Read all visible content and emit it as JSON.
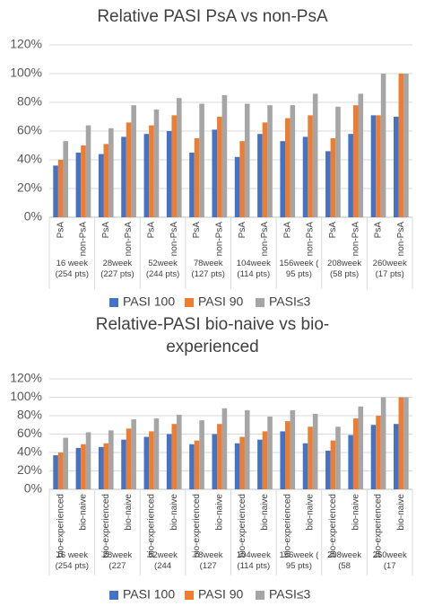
{
  "chart_data": [
    {
      "type": "bar",
      "title": "Relative PASI PsA vs non-PsA",
      "categories": [
        "PsA",
        "non-PsA",
        "PsA",
        "non-PsA",
        "PsA",
        "non-PsA",
        "PsA",
        "non-PsA",
        "PsA",
        "non-PsA",
        "PsA",
        "non-PsA",
        "PsA",
        "non-PsA",
        "PsA",
        "non-PsA"
      ],
      "groups": [
        "16 week\n(254 pts)",
        "28week\n(227 pts)",
        "52week\n(244 pts)",
        "78week\n(127 pts)",
        "104week\n(114 pts)",
        "156week (\n95 pts)",
        "208week\n(58 pts)",
        "260week\n(17 pts)"
      ],
      "series": [
        {
          "name": "PASI 100",
          "color": "#4472c4",
          "values": [
            36,
            45,
            44,
            56,
            58,
            60,
            45,
            61,
            42,
            58,
            53,
            56,
            46,
            58,
            71,
            70
          ]
        },
        {
          "name": "PASI 90",
          "color": "#ed7d31",
          "values": [
            40,
            50,
            51,
            66,
            64,
            71,
            55,
            70,
            53,
            66,
            69,
            71,
            55,
            78,
            71,
            100
          ]
        },
        {
          "name": "PASI≤3",
          "color": "#a5a5a5",
          "values": [
            53,
            64,
            62,
            78,
            75,
            83,
            79,
            85,
            79,
            78,
            78,
            86,
            77,
            86,
            100,
            100
          ]
        }
      ],
      "ylim": [
        0,
        120
      ],
      "yticks": [
        {
          "value": 0,
          "label": "0%"
        },
        {
          "value": 20,
          "label": "20%"
        },
        {
          "value": 40,
          "label": "40%"
        },
        {
          "value": 60,
          "label": "60%"
        },
        {
          "value": 80,
          "label": "80%"
        },
        {
          "value": 100,
          "label": "100%"
        },
        {
          "value": 120,
          "label": "120%"
        }
      ],
      "grid": true,
      "legend": "bottom"
    },
    {
      "type": "bar",
      "title": "Relative-PASI bio-naive vs bio-experienced",
      "categories": [
        "bio-experienced",
        "bio-naive",
        "bio-experienced",
        "bio-naive",
        "bio-experienced",
        "bio-naive",
        "bio-experienced",
        "bio-naive",
        "bio-experienced",
        "bio-naive",
        "bio-experienced",
        "bio-naive",
        "bio-experienced",
        "bio-naive",
        "bio-experienced",
        "bio-naive"
      ],
      "groups": [
        "16 week\n(254 pts)",
        "28week (227",
        "52week (244",
        "78week (127",
        "104week\n(114 pts)",
        "156week (\n95 pts)",
        "208week (58",
        "260week (17"
      ],
      "series": [
        {
          "name": "PASI 100",
          "color": "#4472c4",
          "values": [
            37,
            45,
            46,
            54,
            57,
            60,
            49,
            60,
            50,
            54,
            63,
            50,
            42,
            59,
            70,
            71
          ]
        },
        {
          "name": "PASI 90",
          "color": "#ed7d31",
          "values": [
            40,
            49,
            50,
            66,
            63,
            71,
            53,
            71,
            57,
            63,
            74,
            68,
            53,
            77,
            80,
            100
          ]
        },
        {
          "name": "PASI≤3",
          "color": "#a5a5a5",
          "values": [
            56,
            62,
            64,
            76,
            77,
            81,
            75,
            88,
            86,
            79,
            86,
            82,
            68,
            90,
            100,
            100
          ]
        }
      ],
      "ylim": [
        0,
        120
      ],
      "yticks": [
        {
          "value": 0,
          "label": "0%"
        },
        {
          "value": 20,
          "label": "20%"
        },
        {
          "value": 40,
          "label": "40%"
        },
        {
          "value": 60,
          "label": "60%"
        },
        {
          "value": 80,
          "label": "80%"
        },
        {
          "value": 100,
          "label": "100%"
        },
        {
          "value": 120,
          "label": "120%"
        }
      ],
      "grid": true,
      "legend": "bottom"
    }
  ]
}
